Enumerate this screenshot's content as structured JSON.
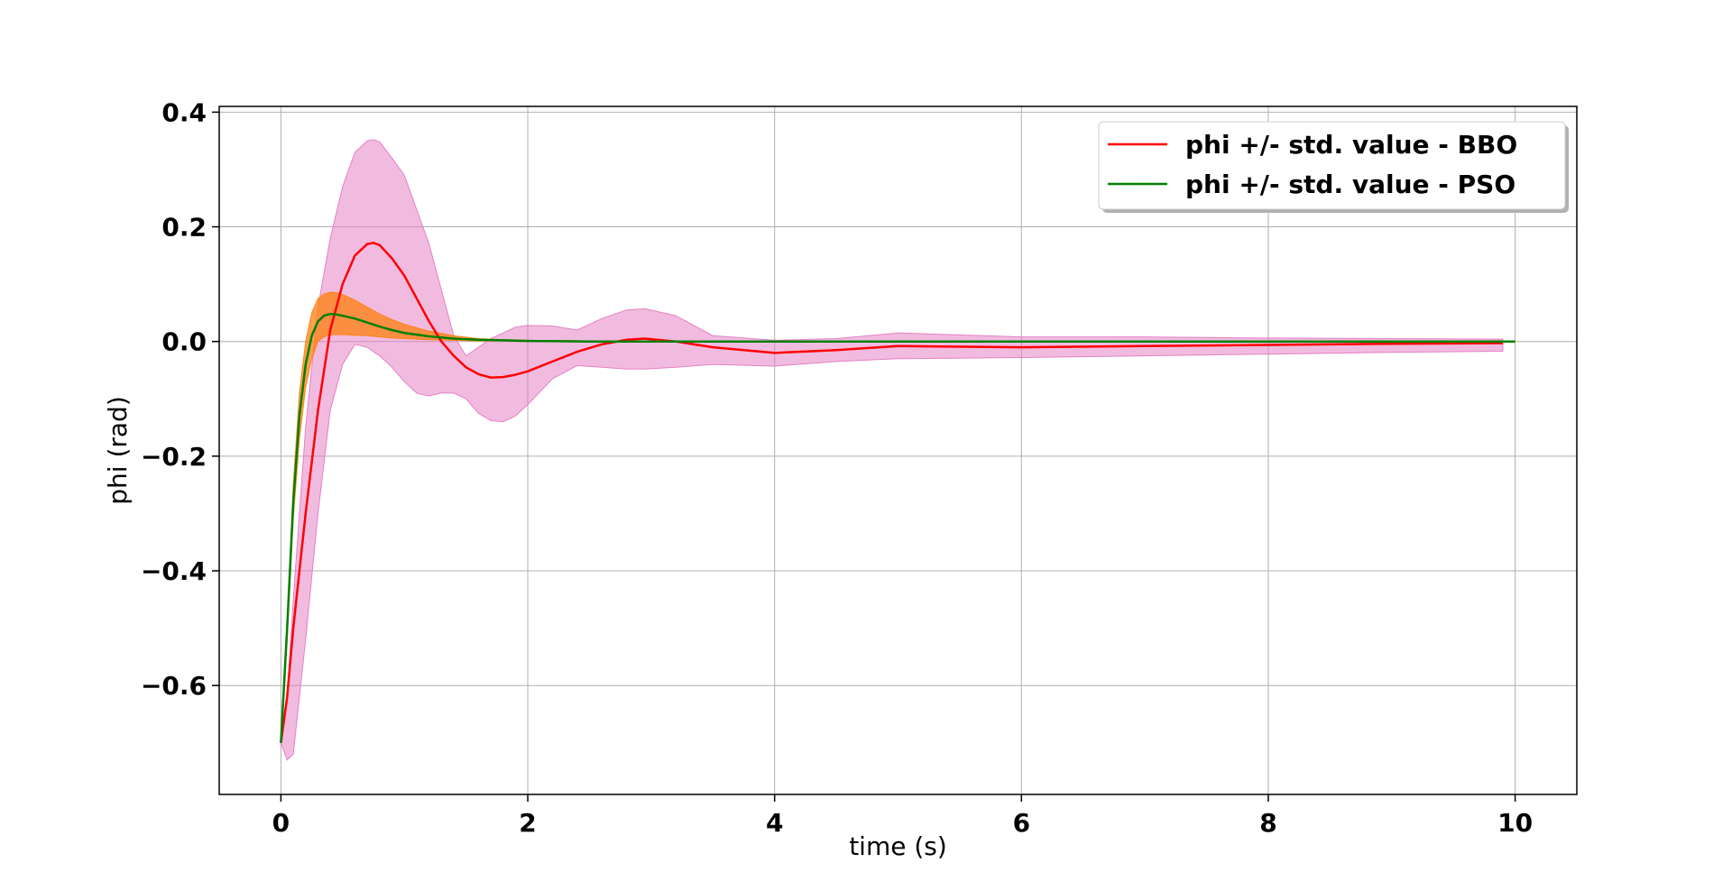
{
  "chart_data": {
    "type": "line",
    "title": "",
    "xlabel": "time (s)",
    "ylabel": "phi (rad)",
    "xlim": [
      -0.5,
      10.5
    ],
    "ylim": [
      -0.79,
      0.41
    ],
    "xticks": [
      0,
      2,
      4,
      6,
      8,
      10
    ],
    "yticks": [
      -0.6,
      -0.4,
      -0.2,
      0.0,
      0.2,
      0.4
    ],
    "xtick_labels": [
      "0",
      "2",
      "4",
      "6",
      "8",
      "10"
    ],
    "ytick_labels": [
      "−0.6",
      "−0.4",
      "−0.2",
      "0.0",
      "0.2",
      "0.4"
    ],
    "grid": true,
    "legend_position": "top-right",
    "series": [
      {
        "name": "phi +/- std. value - BBO",
        "color": "#ff0000",
        "band_color": "#e377c2",
        "x": [
          0,
          0.05,
          0.1,
          0.2,
          0.3,
          0.4,
          0.5,
          0.6,
          0.7,
          0.75,
          0.8,
          0.9,
          1.0,
          1.1,
          1.2,
          1.3,
          1.4,
          1.5,
          1.6,
          1.7,
          1.8,
          1.9,
          2.0,
          2.2,
          2.4,
          2.6,
          2.8,
          2.95,
          3.2,
          3.5,
          4.0,
          4.5,
          5.0,
          6.0,
          7.0,
          8.0,
          9.0,
          9.9
        ],
        "mean": [
          -0.7,
          -0.62,
          -0.5,
          -0.3,
          -0.12,
          0.02,
          0.1,
          0.15,
          0.17,
          0.172,
          0.168,
          0.145,
          0.115,
          0.075,
          0.035,
          0.0,
          -0.025,
          -0.045,
          -0.057,
          -0.063,
          -0.062,
          -0.058,
          -0.052,
          -0.035,
          -0.018,
          -0.005,
          0.003,
          0.005,
          0.0,
          -0.01,
          -0.02,
          -0.015,
          -0.008,
          -0.01,
          -0.008,
          -0.006,
          -0.004,
          -0.003
        ],
        "upper": [
          -0.7,
          -0.62,
          -0.45,
          -0.15,
          0.06,
          0.18,
          0.27,
          0.33,
          0.35,
          0.352,
          0.348,
          0.32,
          0.29,
          0.23,
          0.17,
          0.09,
          0.01,
          -0.025,
          -0.01,
          0.005,
          0.015,
          0.025,
          0.028,
          0.027,
          0.02,
          0.04,
          0.055,
          0.057,
          0.045,
          0.01,
          0.002,
          0.005,
          0.015,
          0.008,
          0.008,
          0.006,
          0.005,
          0.004
        ],
        "lower": [
          -0.7,
          -0.73,
          -0.72,
          -0.52,
          -0.3,
          -0.12,
          -0.04,
          -0.005,
          -0.01,
          -0.018,
          -0.025,
          -0.045,
          -0.07,
          -0.09,
          -0.095,
          -0.09,
          -0.09,
          -0.1,
          -0.125,
          -0.138,
          -0.14,
          -0.13,
          -0.11,
          -0.065,
          -0.042,
          -0.045,
          -0.048,
          -0.048,
          -0.045,
          -0.04,
          -0.043,
          -0.035,
          -0.03,
          -0.028,
          -0.025,
          -0.022,
          -0.019,
          -0.017
        ]
      },
      {
        "name": "phi +/- std. value - PSO",
        "color": "#008000",
        "band_color": "#ff7f0e",
        "x": [
          0,
          0.05,
          0.1,
          0.15,
          0.2,
          0.25,
          0.3,
          0.35,
          0.4,
          0.45,
          0.5,
          0.6,
          0.7,
          0.8,
          0.9,
          1.0,
          1.2,
          1.4,
          1.6,
          1.8,
          2.0,
          2.5,
          3.0,
          4.0,
          5.0,
          6.0,
          7.0,
          8.0,
          9.0,
          10.0
        ],
        "mean": [
          -0.7,
          -0.5,
          -0.28,
          -0.13,
          -0.04,
          0.01,
          0.035,
          0.045,
          0.048,
          0.047,
          0.045,
          0.04,
          0.033,
          0.026,
          0.02,
          0.015,
          0.009,
          0.005,
          0.003,
          0.002,
          0.001,
          0.0,
          0.0,
          0.0,
          0.0,
          0.0,
          0.0,
          0.0,
          0.0,
          0.0
        ],
        "upper": [
          -0.7,
          -0.49,
          -0.25,
          -0.09,
          0.0,
          0.05,
          0.075,
          0.083,
          0.086,
          0.085,
          0.082,
          0.072,
          0.06,
          0.048,
          0.038,
          0.03,
          0.018,
          0.01,
          0.005,
          0.003,
          0.002,
          0.001,
          0.001,
          0.001,
          0.001,
          0.001,
          0.001,
          0.001,
          0.001,
          0.001
        ],
        "lower": [
          -0.7,
          -0.52,
          -0.31,
          -0.17,
          -0.08,
          -0.03,
          0.0,
          0.008,
          0.012,
          0.012,
          0.012,
          0.011,
          0.01,
          0.008,
          0.006,
          0.005,
          0.003,
          0.002,
          0.001,
          0.001,
          0.0,
          -0.001,
          -0.001,
          -0.001,
          -0.001,
          -0.001,
          -0.001,
          -0.001,
          -0.001,
          -0.001
        ]
      }
    ]
  }
}
